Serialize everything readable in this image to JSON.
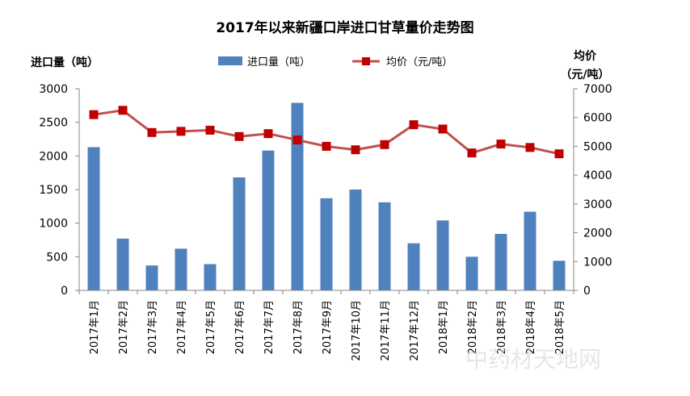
{
  "chart_data": {
    "type": "bar+line",
    "title": "2017年以来新疆口岸进口甘草量价走势图",
    "left_axis_label": "进口量（吨）",
    "right_axis_label_line1": "均价",
    "right_axis_label_line2": "（元/吨）",
    "categories": [
      "2017年1月",
      "2017年2月",
      "2017年3月",
      "2017年4月",
      "2017年5月",
      "2017年6月",
      "2017年7月",
      "2017年8月",
      "2017年9月",
      "2017年10月",
      "2017年11月",
      "2017年12月",
      "2018年1月",
      "2018年2月",
      "2018年3月",
      "2018年4月",
      "2018年5月"
    ],
    "series": [
      {
        "name": "进口量（吨）",
        "type": "bar",
        "axis": "left",
        "color": "#4F81BD",
        "values": [
          2130,
          770,
          370,
          620,
          390,
          1680,
          2080,
          2790,
          1370,
          1500,
          1310,
          700,
          1040,
          500,
          840,
          1170,
          440
        ]
      },
      {
        "name": "均价（元/吨）",
        "type": "line",
        "axis": "right",
        "color": "#C0504D",
        "values": [
          6100,
          6250,
          5480,
          5520,
          5560,
          5340,
          5440,
          5220,
          5000,
          4880,
          5060,
          5750,
          5600,
          4770,
          5080,
          4960,
          4740
        ]
      }
    ],
    "ylim_left": [
      0,
      3000
    ],
    "yticks_left": [
      "0",
      "500",
      "1000",
      "1500",
      "2000",
      "2500",
      "3000"
    ],
    "ylim_right": [
      0,
      7000
    ],
    "yticks_right": [
      "0",
      "1000",
      "2000",
      "3000",
      "4000",
      "5000",
      "6000",
      "7000"
    ],
    "legend_position": "top"
  },
  "watermark": "中药材天地网"
}
